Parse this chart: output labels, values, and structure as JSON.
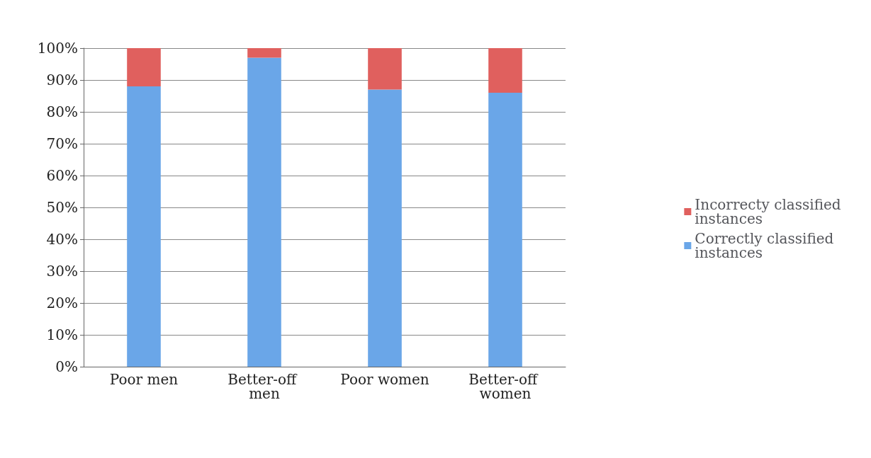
{
  "chart_data": {
    "type": "bar",
    "stacked": true,
    "categories": [
      "Poor men",
      "Better-off men",
      "Poor women",
      "Better-off women"
    ],
    "series": [
      {
        "name": "Correctly classified instances",
        "color": "#6aa6e8",
        "values": [
          88,
          97,
          87,
          86
        ]
      },
      {
        "name": "Incorrecty classified instances",
        "color": "#e0605e",
        "values": [
          12,
          3,
          13,
          14
        ]
      }
    ],
    "ylim": [
      0,
      100
    ],
    "yticks": [
      {
        "value": 0,
        "label": "0%"
      },
      {
        "value": 10,
        "label": "10%"
      },
      {
        "value": 20,
        "label": "20%"
      },
      {
        "value": 30,
        "label": "30%"
      },
      {
        "value": 40,
        "label": "40%"
      },
      {
        "value": 50,
        "label": "50%"
      },
      {
        "value": 60,
        "label": "60%"
      },
      {
        "value": 70,
        "label": "70%"
      },
      {
        "value": 80,
        "label": "80%"
      },
      {
        "value": 90,
        "label": "90%"
      },
      {
        "value": 100,
        "label": "100%"
      }
    ],
    "grid": true,
    "legend": "right"
  }
}
